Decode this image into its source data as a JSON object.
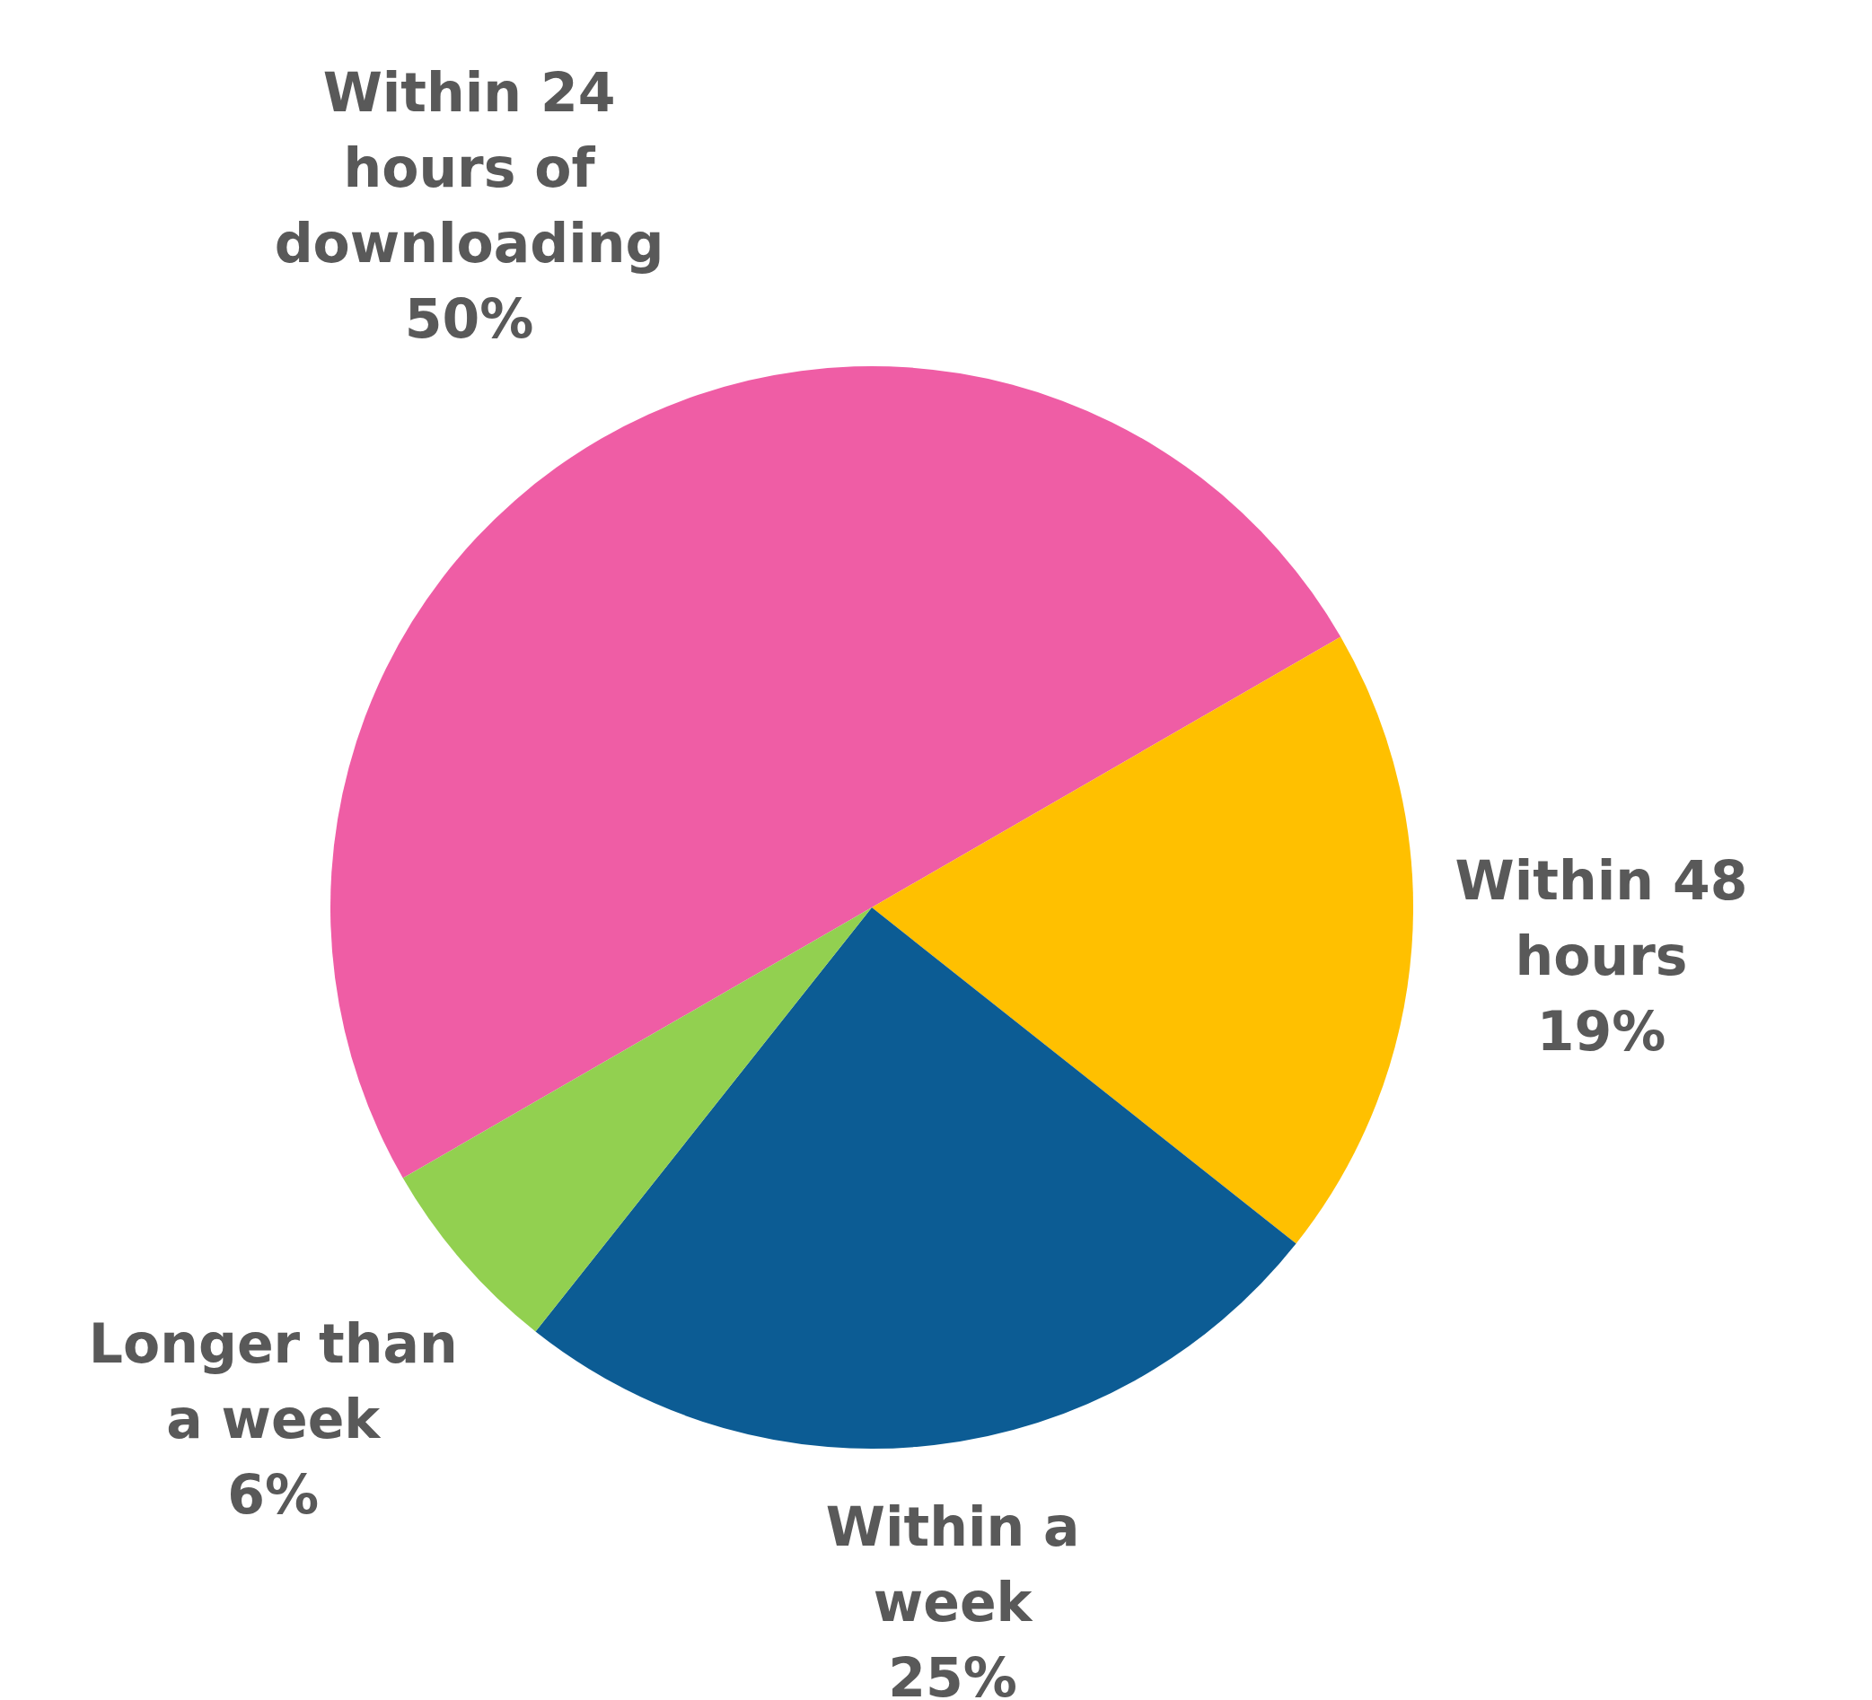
{
  "chart_data": {
    "type": "pie",
    "categories": [
      "Within 24 hours of downloading",
      "Within 48 hours",
      "Within a week",
      "Longer than a week"
    ],
    "values": [
      50,
      19,
      25,
      6
    ],
    "colors": [
      "#ef5da5",
      "#ffc000",
      "#0c5c94",
      "#92d050"
    ],
    "value_labels": [
      "50%",
      "19%",
      "25%",
      "6%"
    ],
    "legend": false
  }
}
